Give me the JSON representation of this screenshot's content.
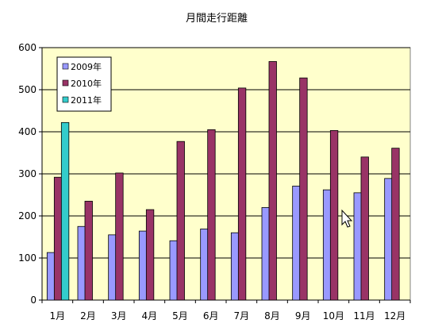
{
  "chart_data": {
    "type": "bar",
    "title": "月間走行距離",
    "xlabel": "",
    "ylabel": "",
    "ylim": [
      0,
      600
    ],
    "yticks": [
      0,
      100,
      200,
      300,
      400,
      500,
      600
    ],
    "grid": true,
    "legend_position": "top-left",
    "categories": [
      "1月",
      "2月",
      "3月",
      "4月",
      "5月",
      "6月",
      "7月",
      "8月",
      "9月",
      "10月",
      "11月",
      "12月"
    ],
    "series": [
      {
        "name": "2009年",
        "color": "#9999ff",
        "values": [
          113,
          175,
          155,
          164,
          141,
          169,
          160,
          220,
          271,
          262,
          255,
          289
        ]
      },
      {
        "name": "2010年",
        "color": "#993366",
        "values": [
          292,
          235,
          302,
          215,
          377,
          405,
          504,
          567,
          528,
          403,
          340,
          361
        ]
      },
      {
        "name": "2011年",
        "color": "#33cccc",
        "values": [
          422,
          null,
          null,
          null,
          null,
          null,
          null,
          null,
          null,
          null,
          null,
          null
        ]
      }
    ],
    "plot_background": "#ffffcc"
  }
}
